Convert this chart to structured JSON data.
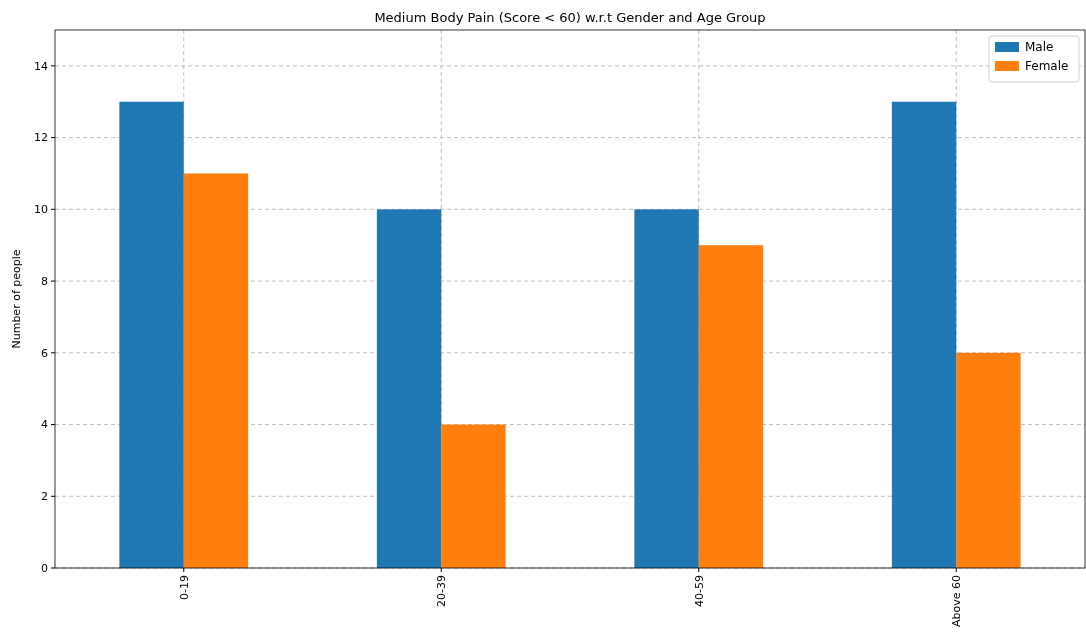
{
  "chart_data": {
    "type": "bar",
    "title": "Medium Body Pain (Score < 60) w.r.t Gender and Age Group",
    "ylabel": "Number of people",
    "categories": [
      "0-19",
      "20-39",
      "40-59",
      "Above 60"
    ],
    "series": [
      {
        "name": "Male",
        "color": "#1f77b4",
        "values": [
          13,
          10,
          10,
          13
        ]
      },
      {
        "name": "Female",
        "color": "#ff7f0e",
        "values": [
          11,
          4,
          9,
          6
        ]
      }
    ],
    "ylim": [
      0,
      15
    ],
    "yticks": [
      0,
      2,
      4,
      6,
      8,
      10,
      12,
      14
    ],
    "grid": true,
    "legend": "top right"
  }
}
